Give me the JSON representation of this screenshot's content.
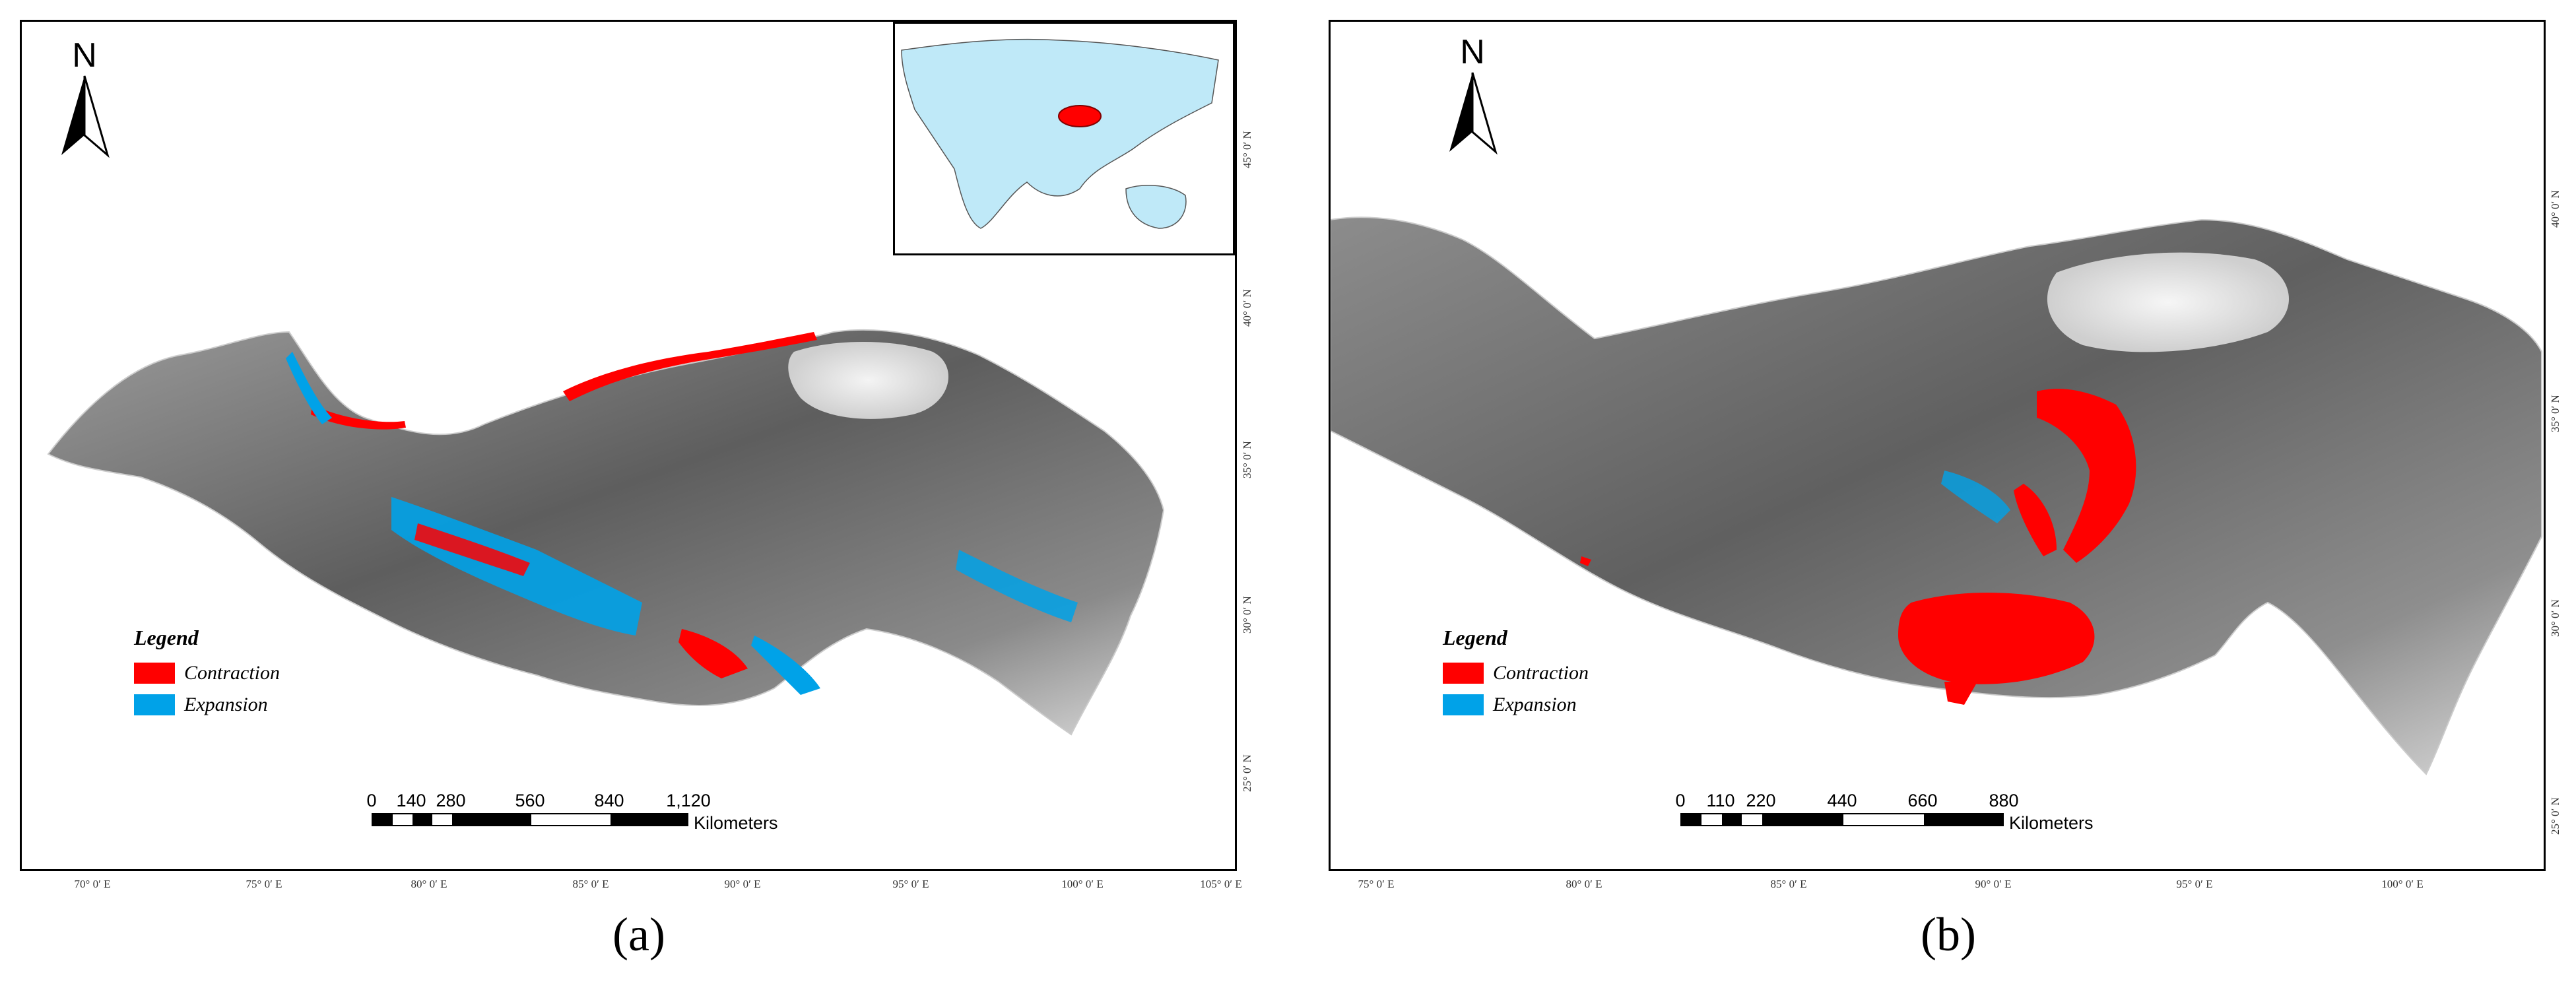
{
  "figure": {
    "panels": [
      {
        "id": "a",
        "panel_label": "(a)",
        "north_arrow": "N",
        "legend": {
          "title": "Legend",
          "items": [
            {
              "label": "Contraction",
              "color": "#ff0000"
            },
            {
              "label": "Expansion",
              "color": "#00a2e8"
            }
          ]
        },
        "scale_bar": {
          "ticks": [
            "0",
            "140",
            "280",
            "560",
            "840",
            "1,120"
          ],
          "unit": "Kilometers"
        },
        "longitude_labels": [
          "70° 0′ E",
          "75° 0′ E",
          "80° 0′ E",
          "85° 0′ E",
          "90° 0′ E",
          "95° 0′ E",
          "100° 0′ E",
          "105° 0′ E"
        ],
        "latitude_labels": [
          "25° 0′ N",
          "30° 0′ N",
          "35° 0′ N",
          "40° 0′ N",
          "45° 0′ N"
        ],
        "inset_map": "Asia locator map with study area hatched in red"
      },
      {
        "id": "b",
        "panel_label": "(b)",
        "north_arrow": "N",
        "legend": {
          "title": "Legend",
          "items": [
            {
              "label": "Contraction",
              "color": "#ff0000"
            },
            {
              "label": "Expansion",
              "color": "#00a2e8"
            }
          ]
        },
        "scale_bar": {
          "ticks": [
            "0",
            "110",
            "220",
            "440",
            "660",
            "880"
          ],
          "unit": "Kilometers"
        },
        "longitude_labels": [
          "75° 0′ E",
          "80° 0′ E",
          "85° 0′ E",
          "90° 0′ E",
          "95° 0′ E",
          "100° 0′ E"
        ],
        "latitude_labels": [
          "25° 0′ N",
          "30° 0′ N",
          "35° 0′ N",
          "40° 0′ N"
        ]
      }
    ],
    "colors": {
      "contraction": "#ff0000",
      "expansion": "#00a2e8",
      "terrain_dark": "#5a5a5a",
      "terrain_light": "#f2f2f2",
      "inset_land": "#bfe9f8"
    }
  }
}
